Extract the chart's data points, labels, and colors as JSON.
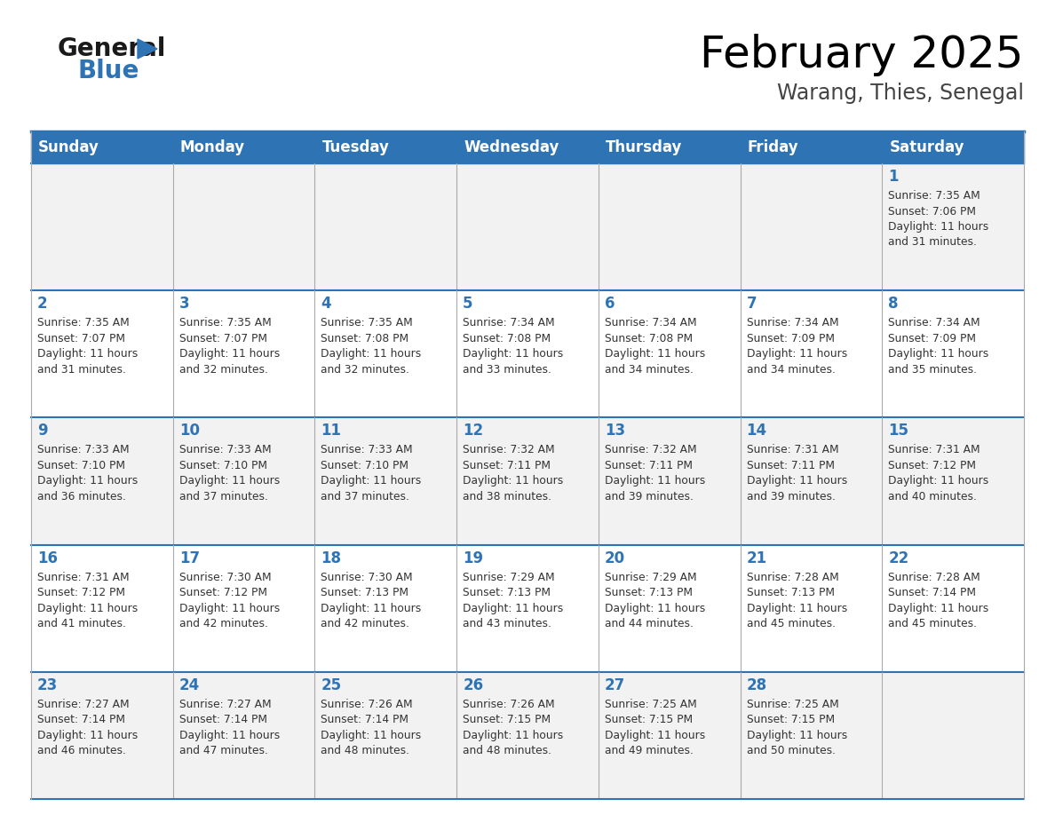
{
  "title": "February 2025",
  "subtitle": "Warang, Thies, Senegal",
  "days_of_week": [
    "Sunday",
    "Monday",
    "Tuesday",
    "Wednesday",
    "Thursday",
    "Friday",
    "Saturday"
  ],
  "header_bg": "#2E74B5",
  "header_text": "#FFFFFF",
  "odd_row_bg": "#F2F2F2",
  "even_row_bg": "#FFFFFF",
  "cell_border": "#AAAAAA",
  "row_border": "#2E74B5",
  "day_number_color": "#2E74B5",
  "info_text_color": "#333333",
  "title_color": "#000000",
  "subtitle_color": "#444444",
  "logo_general_color": "#1A1A1A",
  "logo_blue_color": "#2E74B5",
  "calendar_data": [
    [
      null,
      null,
      null,
      null,
      null,
      null,
      {
        "day": 1,
        "sunrise": "7:35 AM",
        "sunset": "7:06 PM",
        "daylight": "11 hours and 31 minutes."
      }
    ],
    [
      {
        "day": 2,
        "sunrise": "7:35 AM",
        "sunset": "7:07 PM",
        "daylight": "11 hours and 31 minutes."
      },
      {
        "day": 3,
        "sunrise": "7:35 AM",
        "sunset": "7:07 PM",
        "daylight": "11 hours and 32 minutes."
      },
      {
        "day": 4,
        "sunrise": "7:35 AM",
        "sunset": "7:08 PM",
        "daylight": "11 hours and 32 minutes."
      },
      {
        "day": 5,
        "sunrise": "7:34 AM",
        "sunset": "7:08 PM",
        "daylight": "11 hours and 33 minutes."
      },
      {
        "day": 6,
        "sunrise": "7:34 AM",
        "sunset": "7:08 PM",
        "daylight": "11 hours and 34 minutes."
      },
      {
        "day": 7,
        "sunrise": "7:34 AM",
        "sunset": "7:09 PM",
        "daylight": "11 hours and 34 minutes."
      },
      {
        "day": 8,
        "sunrise": "7:34 AM",
        "sunset": "7:09 PM",
        "daylight": "11 hours and 35 minutes."
      }
    ],
    [
      {
        "day": 9,
        "sunrise": "7:33 AM",
        "sunset": "7:10 PM",
        "daylight": "11 hours and 36 minutes."
      },
      {
        "day": 10,
        "sunrise": "7:33 AM",
        "sunset": "7:10 PM",
        "daylight": "11 hours and 37 minutes."
      },
      {
        "day": 11,
        "sunrise": "7:33 AM",
        "sunset": "7:10 PM",
        "daylight": "11 hours and 37 minutes."
      },
      {
        "day": 12,
        "sunrise": "7:32 AM",
        "sunset": "7:11 PM",
        "daylight": "11 hours and 38 minutes."
      },
      {
        "day": 13,
        "sunrise": "7:32 AM",
        "sunset": "7:11 PM",
        "daylight": "11 hours and 39 minutes."
      },
      {
        "day": 14,
        "sunrise": "7:31 AM",
        "sunset": "7:11 PM",
        "daylight": "11 hours and 39 minutes."
      },
      {
        "day": 15,
        "sunrise": "7:31 AM",
        "sunset": "7:12 PM",
        "daylight": "11 hours and 40 minutes."
      }
    ],
    [
      {
        "day": 16,
        "sunrise": "7:31 AM",
        "sunset": "7:12 PM",
        "daylight": "11 hours and 41 minutes."
      },
      {
        "day": 17,
        "sunrise": "7:30 AM",
        "sunset": "7:12 PM",
        "daylight": "11 hours and 42 minutes."
      },
      {
        "day": 18,
        "sunrise": "7:30 AM",
        "sunset": "7:13 PM",
        "daylight": "11 hours and 42 minutes."
      },
      {
        "day": 19,
        "sunrise": "7:29 AM",
        "sunset": "7:13 PM",
        "daylight": "11 hours and 43 minutes."
      },
      {
        "day": 20,
        "sunrise": "7:29 AM",
        "sunset": "7:13 PM",
        "daylight": "11 hours and 44 minutes."
      },
      {
        "day": 21,
        "sunrise": "7:28 AM",
        "sunset": "7:13 PM",
        "daylight": "11 hours and 45 minutes."
      },
      {
        "day": 22,
        "sunrise": "7:28 AM",
        "sunset": "7:14 PM",
        "daylight": "11 hours and 45 minutes."
      }
    ],
    [
      {
        "day": 23,
        "sunrise": "7:27 AM",
        "sunset": "7:14 PM",
        "daylight": "11 hours and 46 minutes."
      },
      {
        "day": 24,
        "sunrise": "7:27 AM",
        "sunset": "7:14 PM",
        "daylight": "11 hours and 47 minutes."
      },
      {
        "day": 25,
        "sunrise": "7:26 AM",
        "sunset": "7:14 PM",
        "daylight": "11 hours and 48 minutes."
      },
      {
        "day": 26,
        "sunrise": "7:26 AM",
        "sunset": "7:15 PM",
        "daylight": "11 hours and 48 minutes."
      },
      {
        "day": 27,
        "sunrise": "7:25 AM",
        "sunset": "7:15 PM",
        "daylight": "11 hours and 49 minutes."
      },
      {
        "day": 28,
        "sunrise": "7:25 AM",
        "sunset": "7:15 PM",
        "daylight": "11 hours and 50 minutes."
      },
      null
    ]
  ]
}
